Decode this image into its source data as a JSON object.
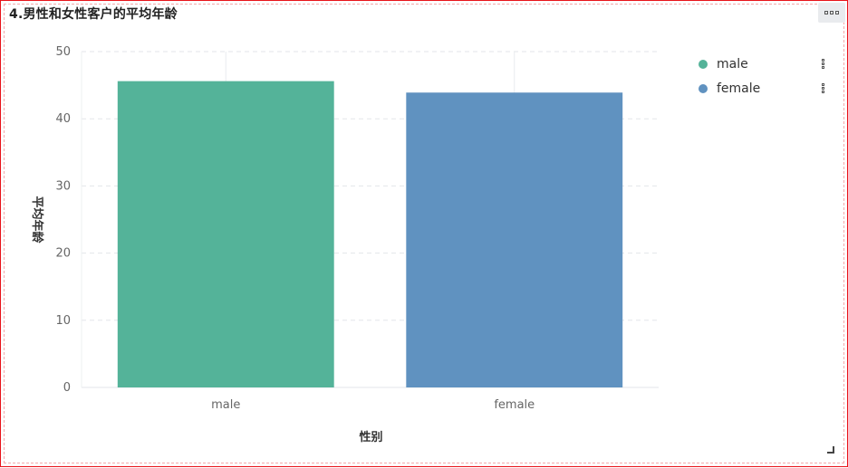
{
  "panel": {
    "title": "4.男性和女性客户的平均年龄"
  },
  "icons": {
    "options": "more-horizontal-icon",
    "legend_menu": "more-vertical-icon",
    "resize": "resize-corner-icon"
  },
  "colors": {
    "male": "#54b399",
    "female": "#6092c0",
    "border": "#e8131a"
  },
  "chart_data": {
    "type": "bar",
    "categories": [
      "male",
      "female"
    ],
    "values": [
      45.6,
      43.9
    ],
    "xlabel": "性别",
    "ylabel": "平均年龄",
    "ylim": [
      0,
      50
    ],
    "yticks": [
      0,
      10,
      20,
      30,
      40,
      50
    ],
    "grid": true,
    "legend": {
      "placement": "right",
      "entries": [
        "male",
        "female"
      ]
    }
  }
}
